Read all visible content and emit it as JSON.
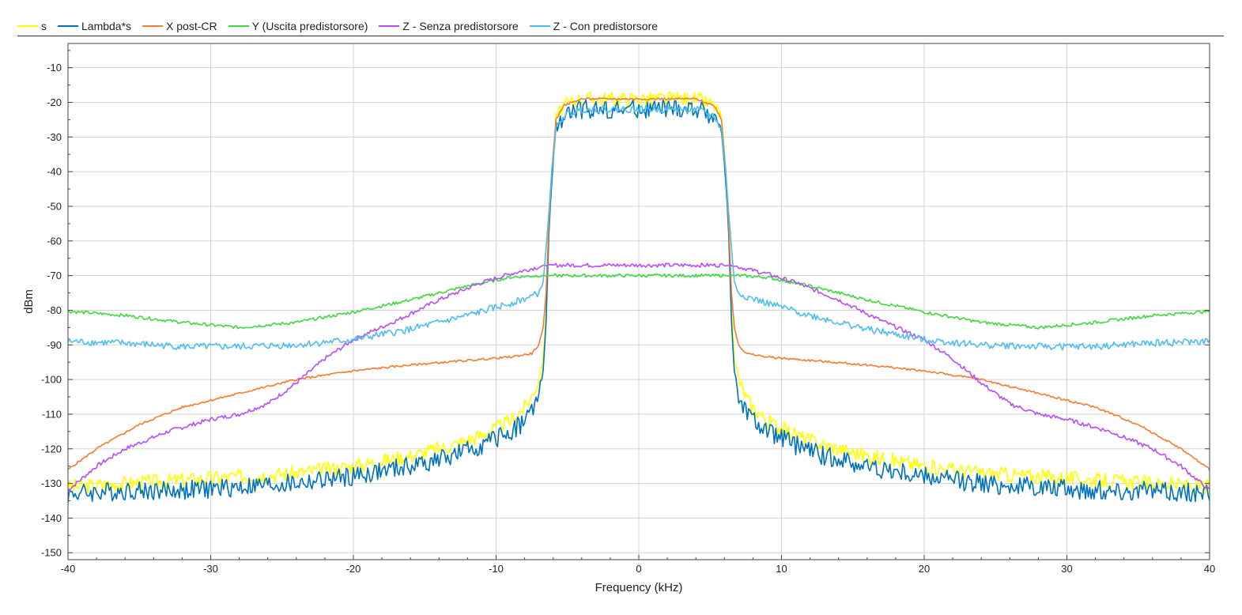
{
  "chart_data": {
    "type": "line",
    "title": "",
    "xlabel": "Frequency (kHz)",
    "ylabel": "dBm",
    "xlim": [
      -40,
      40
    ],
    "ylim": [
      -152,
      -3
    ],
    "x_ticks": [
      -40,
      -30,
      -20,
      -10,
      0,
      10,
      20,
      30,
      40
    ],
    "y_ticks": [
      -10,
      -20,
      -30,
      -40,
      -50,
      -60,
      -70,
      -80,
      -90,
      -100,
      -110,
      -120,
      -130,
      -140,
      -150
    ],
    "x_tick_labels": [
      "-40",
      "-30",
      "-20",
      "-10",
      "0",
      "10",
      "20",
      "30",
      "40"
    ],
    "y_tick_labels": [
      "-10",
      "-20",
      "-30",
      "-40",
      "-50",
      "-60",
      "-70",
      "-80",
      "-90",
      "-100",
      "-110",
      "-120",
      "-130",
      "-140",
      "-150"
    ],
    "grid": true,
    "legend_position": "top-left",
    "series": [
      {
        "name": "s",
        "color": "#ffff00",
        "noise_dB": 2.2,
        "x": [
          -40,
          -36,
          -32,
          -28,
          -24,
          -20,
          -16,
          -13,
          -11,
          -9,
          -8,
          -7.5,
          -7,
          -6.7,
          -6.5,
          -6.3,
          -6.1,
          -5.8,
          -5.3,
          -4,
          0,
          4,
          5.3,
          5.8,
          6.1,
          6.3,
          6.5,
          6.7,
          7,
          7.5,
          8,
          9,
          11,
          13,
          16,
          20,
          24,
          28,
          32,
          36,
          40
        ],
        "y": [
          -131,
          -130,
          -129,
          -128,
          -127,
          -125,
          -122,
          -119,
          -116,
          -112,
          -108,
          -105,
          -100,
          -94,
          -80,
          -55,
          -40,
          -25,
          -21,
          -19,
          -19,
          -19,
          -21,
          -25,
          -40,
          -55,
          -80,
          -94,
          -100,
          -105,
          -108,
          -112,
          -116,
          -119,
          -122,
          -125,
          -127,
          -128,
          -129,
          -130,
          -131
        ]
      },
      {
        "name": "Lambda*s",
        "color": "#0072bd",
        "noise_dB": 2.8,
        "x": [
          -40,
          -36,
          -32,
          -28,
          -24,
          -20,
          -16,
          -13,
          -11,
          -9,
          -8,
          -7.5,
          -7,
          -6.7,
          -6.5,
          -6.3,
          -6.1,
          -5.8,
          -5.3,
          -4,
          0,
          4,
          5.3,
          5.8,
          6.1,
          6.3,
          6.5,
          6.7,
          7,
          7.5,
          8,
          9,
          11,
          13,
          16,
          20,
          24,
          28,
          32,
          36,
          40
        ],
        "y": [
          -133,
          -132,
          -132,
          -131,
          -130,
          -128,
          -125,
          -122,
          -119,
          -115,
          -112,
          -109,
          -104,
          -98,
          -83,
          -58,
          -43,
          -28,
          -24,
          -22,
          -22,
          -22,
          -24,
          -28,
          -43,
          -58,
          -83,
          -98,
          -104,
          -109,
          -112,
          -115,
          -119,
          -122,
          -125,
          -128,
          -130,
          -131,
          -132,
          -132,
          -133
        ]
      },
      {
        "name": "X post-CR",
        "color": "#f47c30",
        "noise_dB": 0.3,
        "x": [
          -40,
          -38,
          -35,
          -32,
          -28,
          -24,
          -20,
          -16,
          -12,
          -9,
          -7.5,
          -7,
          -6.7,
          -6.5,
          -6.3,
          -6.1,
          -5.8,
          -5.3,
          -4,
          0,
          4,
          5.3,
          5.8,
          6.1,
          6.3,
          6.5,
          6.7,
          7,
          7.5,
          9,
          12,
          16,
          20,
          24,
          28,
          32,
          35,
          38,
          40
        ],
        "y": [
          -126,
          -120,
          -113,
          -108,
          -104,
          -100,
          -97.5,
          -95.8,
          -94.5,
          -93.5,
          -92.5,
          -90,
          -85,
          -75,
          -55,
          -40,
          -25,
          -21,
          -19,
          -19,
          -19,
          -21,
          -25,
          -40,
          -55,
          -75,
          -85,
          -90,
          -92.5,
          -93.5,
          -94.5,
          -95.8,
          -97.5,
          -100,
          -104,
          -108,
          -113,
          -120,
          -126
        ]
      },
      {
        "name": "Y (Uscita predistorsore)",
        "color": "#3fd83f",
        "noise_dB": 0.45,
        "x": [
          -40,
          -36,
          -32,
          -28,
          -24,
          -20,
          -16,
          -12,
          -9,
          -7,
          -6.5,
          6.5,
          7,
          9,
          12,
          16,
          20,
          24,
          28,
          32,
          36,
          40
        ],
        "y": [
          -80.3,
          -81.5,
          -83.5,
          -85,
          -83.5,
          -80.5,
          -77,
          -73,
          -70.5,
          -70,
          -70,
          -70,
          -70,
          -70.5,
          -73,
          -77,
          -80.5,
          -83.5,
          -85,
          -83.5,
          -81.5,
          -80.3
        ]
      },
      {
        "name": "Z - Senza predistorsore",
        "color": "#b84ef7",
        "noise_dB": 0.6,
        "x": [
          -40,
          -38,
          -36,
          -33,
          -30,
          -28,
          -26,
          -24,
          -22,
          -20,
          -17,
          -14,
          -11,
          -9,
          -7,
          -6.5,
          6.5,
          7,
          9,
          11,
          14,
          17,
          20,
          22,
          24,
          26,
          28,
          30,
          33,
          36,
          38,
          40
        ],
        "y": [
          -132,
          -125,
          -120,
          -115,
          -111.5,
          -110,
          -107,
          -101,
          -94,
          -88.5,
          -83,
          -77,
          -72,
          -69.5,
          -67.5,
          -67,
          -67,
          -67.5,
          -69.5,
          -72,
          -77,
          -83,
          -88.5,
          -94,
          -101,
          -107,
          -110,
          -111.5,
          -115,
          -120,
          -125,
          -132
        ]
      },
      {
        "name": "Z - Con predistorsore",
        "color": "#4dbeee",
        "noise_dB": 1.0,
        "x": [
          -40,
          -36,
          -32,
          -28,
          -24,
          -20,
          -16,
          -12,
          -9,
          -7.5,
          -7,
          -6.7,
          -6.5,
          -6.3,
          -6.1,
          -5.8,
          -5.3,
          -4,
          0,
          4,
          5.3,
          5.8,
          6.1,
          6.3,
          6.5,
          6.7,
          7,
          7.5,
          9,
          12,
          16,
          20,
          24,
          28,
          32,
          36,
          40
        ],
        "y": [
          -89,
          -89.5,
          -90.5,
          -90.5,
          -90,
          -88.5,
          -85.5,
          -81.5,
          -78,
          -76,
          -75,
          -72,
          -62,
          -52,
          -40,
          -28,
          -24,
          -22,
          -22,
          -22,
          -24,
          -28,
          -40,
          -52,
          -62,
          -72,
          -75,
          -76,
          -78,
          -81.5,
          -85.5,
          -88.5,
          -90,
          -90.5,
          -90.5,
          -89.5,
          -89
        ]
      }
    ]
  }
}
